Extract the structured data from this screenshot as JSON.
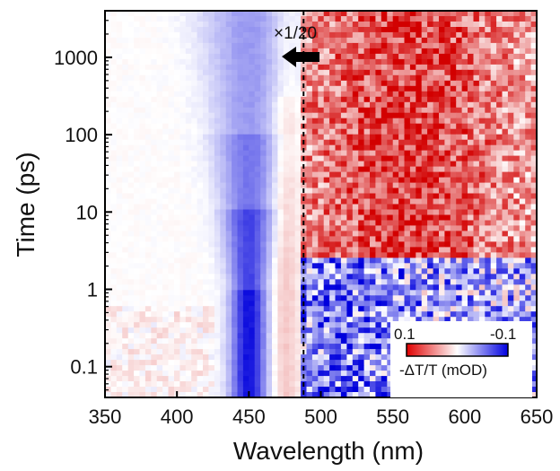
{
  "chart_data": {
    "type": "heatmap",
    "xlabel": "Wavelength (nm)",
    "ylabel": "Time (ps)",
    "xlim": [
      350,
      650
    ],
    "ylim": [
      0.04,
      4000
    ],
    "yscale": "log",
    "x_ticks": [
      350,
      400,
      450,
      500,
      550,
      600,
      650
    ],
    "x_tick_labels": [
      "350",
      "400",
      "450",
      "500",
      "550",
      "600",
      "650"
    ],
    "y_ticks": [
      0.1,
      1,
      10,
      100,
      1000
    ],
    "y_tick_labels": [
      "0.1",
      "1",
      "10",
      "100",
      "1000"
    ],
    "divider_wavelength": 488,
    "scale_annotation": "×1/20",
    "scale_arrow_direction": "left",
    "features": [
      {
        "kind": "bleach",
        "center_nm": 450,
        "appears_ps": 0.04,
        "visible_until_ps": 4000,
        "sign": "negative"
      },
      {
        "kind": "absorption",
        "center_nm": 475,
        "range_nm": [
          465,
          485
        ],
        "sign": "positive"
      },
      {
        "kind": "absorption",
        "range_nm": [
          500,
          650
        ],
        "peak_nm": 560,
        "times_ps": [
          3,
          4000
        ],
        "sign": "positive"
      },
      {
        "kind": "bleach",
        "range_nm": [
          490,
          650
        ],
        "times_ps": [
          0.2,
          3
        ],
        "sign": "negative"
      }
    ],
    "colorbar": {
      "min_label": "0.1",
      "max_label": "-0.1",
      "label": "-ΔT/T (mOD)",
      "colors": [
        "#e00000",
        "#ffffff",
        "#0000e0"
      ],
      "position": "bottom-right"
    },
    "grid": false
  }
}
